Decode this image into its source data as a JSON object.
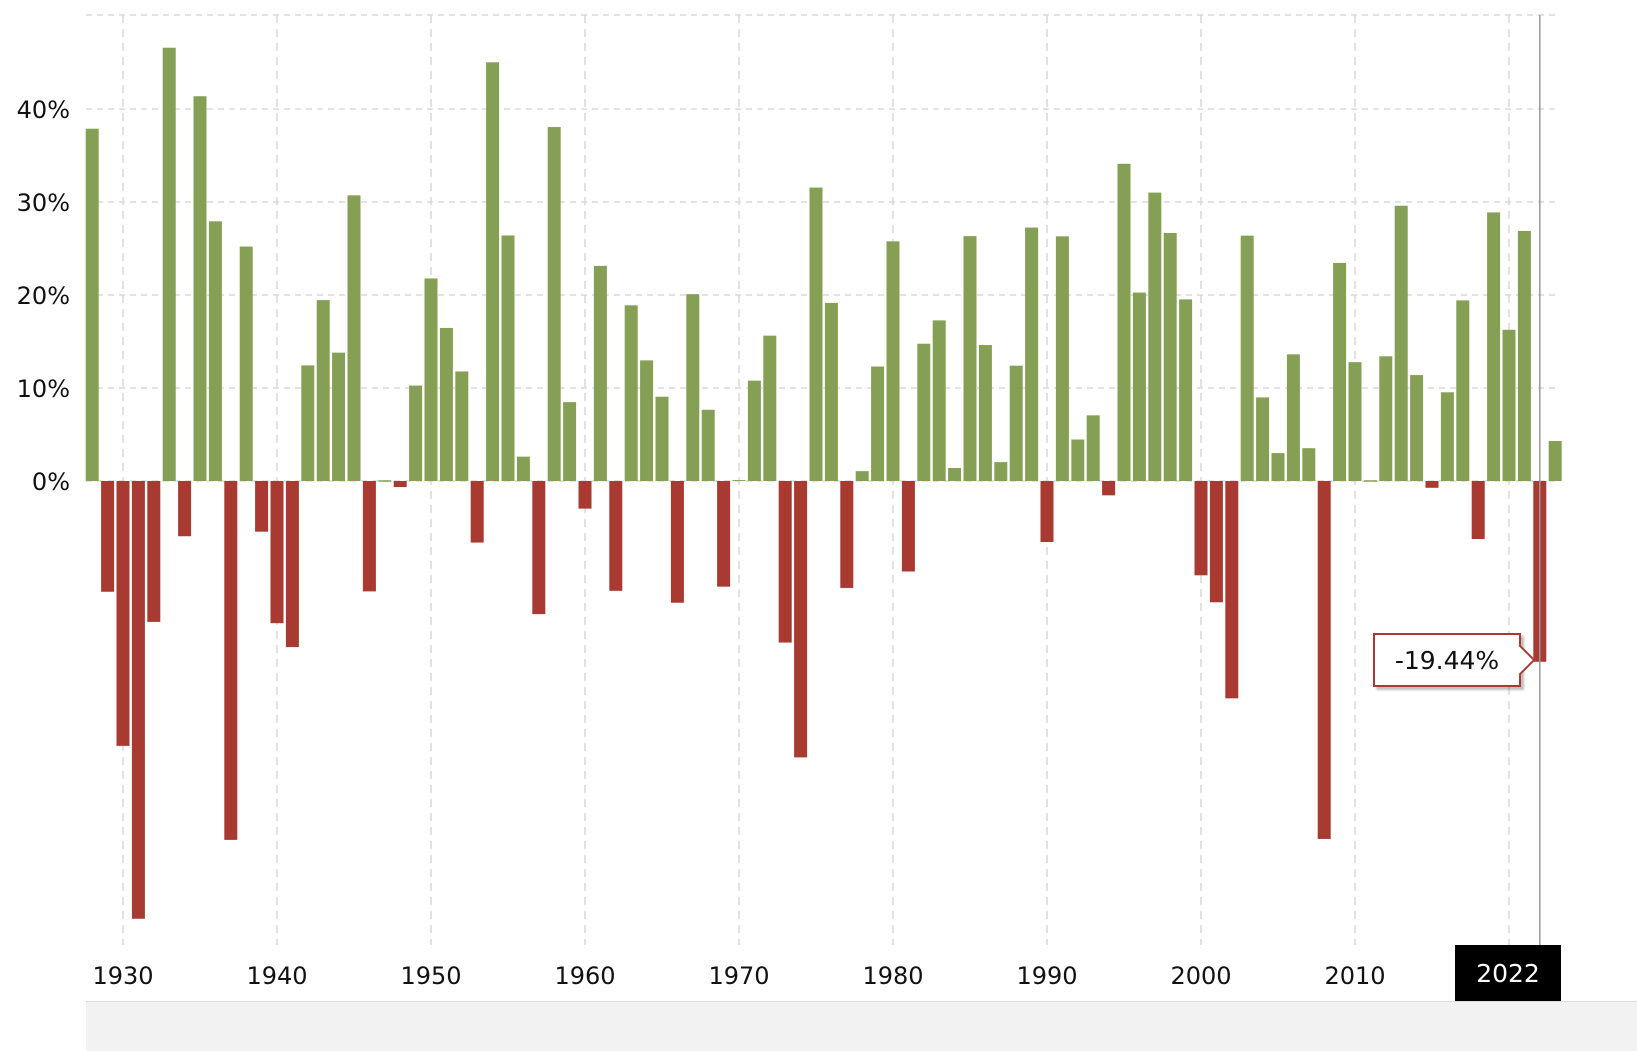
{
  "chart_data": {
    "type": "bar",
    "title": "",
    "xlabel": "",
    "ylabel": "",
    "ylim": [
      -47.5,
      50
    ],
    "xlim": [
      1927.5,
      2023.5
    ],
    "grid": true,
    "y_ticks": [
      "0%",
      "10%",
      "20%",
      "30%",
      "40%"
    ],
    "y_tick_values": [
      0,
      10,
      20,
      30,
      40
    ],
    "x_ticks": [
      "1930",
      "1940",
      "1950",
      "1960",
      "1970",
      "1980",
      "1990",
      "2000",
      "2010"
    ],
    "x_tick_values": [
      1930,
      1940,
      1950,
      1960,
      1970,
      1980,
      1990,
      2000,
      2010
    ],
    "colors": {
      "positive": "#85a055",
      "negative": "#a93a31",
      "crosshair": "#999999"
    },
    "hover": {
      "year": "2022",
      "value_label": "-19.44%"
    },
    "x": [
      1928,
      1929,
      1930,
      1931,
      1932,
      1933,
      1934,
      1935,
      1936,
      1937,
      1938,
      1939,
      1940,
      1941,
      1942,
      1943,
      1944,
      1945,
      1946,
      1947,
      1948,
      1949,
      1950,
      1951,
      1952,
      1953,
      1954,
      1955,
      1956,
      1957,
      1958,
      1959,
      1960,
      1961,
      1962,
      1963,
      1964,
      1965,
      1966,
      1967,
      1968,
      1969,
      1970,
      1971,
      1972,
      1973,
      1974,
      1975,
      1976,
      1977,
      1978,
      1979,
      1980,
      1981,
      1982,
      1983,
      1984,
      1985,
      1986,
      1987,
      1988,
      1989,
      1990,
      1991,
      1992,
      1993,
      1994,
      1995,
      1996,
      1997,
      1998,
      1999,
      2000,
      2001,
      2002,
      2003,
      2004,
      2005,
      2006,
      2007,
      2008,
      2009,
      2010,
      2011,
      2012,
      2013,
      2014,
      2015,
      2016,
      2017,
      2018,
      2019,
      2020,
      2021,
      2022,
      2023
    ],
    "values": [
      37.88,
      -11.91,
      -28.48,
      -47.07,
      -15.15,
      46.59,
      -5.94,
      41.37,
      27.92,
      -38.59,
      25.21,
      -5.45,
      -15.29,
      -17.86,
      12.43,
      19.45,
      13.8,
      30.72,
      -11.87,
      0.0,
      -0.65,
      10.26,
      21.78,
      16.46,
      11.78,
      -6.62,
      45.02,
      26.4,
      2.62,
      -14.31,
      38.06,
      8.48,
      -2.97,
      23.13,
      -11.81,
      18.89,
      12.97,
      9.06,
      -13.09,
      20.09,
      7.66,
      -11.36,
      0.1,
      10.79,
      15.63,
      -17.37,
      -29.72,
      31.55,
      19.15,
      -11.5,
      1.06,
      12.31,
      25.77,
      -9.73,
      14.76,
      17.27,
      1.4,
      26.33,
      14.62,
      2.03,
      12.4,
      27.25,
      -6.56,
      26.31,
      4.46,
      7.06,
      -1.54,
      34.11,
      20.26,
      31.01,
      26.67,
      19.53,
      -10.14,
      -13.04,
      -23.37,
      26.38,
      8.99,
      3.0,
      13.62,
      3.53,
      -38.49,
      23.45,
      12.78,
      0.0,
      13.41,
      29.6,
      11.39,
      -0.73,
      9.54,
      19.42,
      -6.24,
      28.88,
      16.26,
      26.89,
      -19.44,
      4.3
    ]
  }
}
